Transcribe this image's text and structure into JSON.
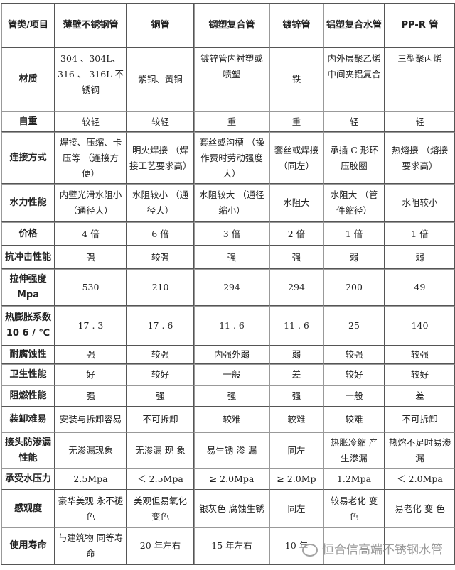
{
  "header": [
    "管类/项目",
    "薄壁不锈钢管",
    "铜管",
    "钢塑复合管",
    "镀锌管",
    "铝塑复合水管",
    "PP-R 管"
  ],
  "rows": [
    [
      "材质",
      "304 、304L、316 、 316L 不锈钢",
      "紫铜、黄铜",
      "镀锌管内衬塑或喷塑",
      "铁",
      "内外层聚乙烯 中间夹铝复合",
      "三型聚丙烯"
    ],
    [
      "自重",
      "较轻",
      "较轻",
      "重",
      "重",
      "轻",
      "轻"
    ],
    [
      "连接方式",
      "焊接、压缩、卡压等 （连接方便）",
      "明火焊接 （焊接工艺要求高）",
      "套丝或沟槽 （操作费时劳动强度大）",
      "套丝或焊接（同左）",
      "承插 C 形环压胶圈",
      "热熔接 （熔接要求高）"
    ],
    [
      "水力性能",
      "内壁光滑水阻小（通径大）",
      "水阻较小 （通径大）",
      "水阻较大 （通径缩小）",
      "水阻大",
      "水阻大 （管件缩径）",
      "水阻较小"
    ],
    [
      "价格",
      "4 倍",
      "6 倍",
      "3 倍",
      "2 倍",
      "1 倍",
      "1 倍"
    ],
    [
      "抗冲击性能",
      "强",
      "较强",
      "强",
      "强",
      "弱",
      "弱"
    ],
    [
      "拉伸强度 Mpa",
      "530",
      "210",
      "294",
      "294",
      "200",
      "49"
    ],
    [
      "热膨胀系数 10 6 / ℃",
      "17 . 3",
      "17 . 6",
      "11 . 6",
      "11 . 6",
      "25",
      "140"
    ],
    [
      "耐腐蚀性",
      "强",
      "较强",
      "内强外弱",
      "弱",
      "较强",
      "较强"
    ],
    [
      "卫生性能",
      "好",
      "较好",
      "一般",
      "差",
      "较好",
      "较好"
    ],
    [
      "阻燃性能",
      "强",
      "强",
      "强",
      "强",
      "一般",
      "差"
    ],
    [
      "装卸难易",
      "安装与拆卸容易",
      "不可拆卸",
      "较难",
      "较难",
      "较难",
      "不可拆卸"
    ],
    [
      "接头防渗漏性能",
      "无渗漏现象",
      "无渗漏 现 象",
      "易生锈 渗 漏",
      "同左",
      "热胀冷缩 产生渗漏",
      "热熔不足时易渗漏"
    ],
    [
      "承受水压力",
      "2.5Mpa",
      "＜ 2.5Mpa",
      "≥ 2.0Mpa",
      "≥ 2.0Mp",
      "1.2Mpa",
      "＜ 2.0Mpa"
    ],
    [
      "感观度",
      "豪华美观 永不褪色",
      "美观但易氧化变色",
      "银灰色 腐蚀生锈",
      "同左",
      "较易老化 变色",
      "易老化 变 色"
    ],
    [
      "使用寿命",
      "与建筑物 同等寿命",
      "20 年左右",
      "15 年左右",
      "10 年",
      "",
      ""
    ]
  ],
  "watermark": "恒合信高端不锈钢水管"
}
